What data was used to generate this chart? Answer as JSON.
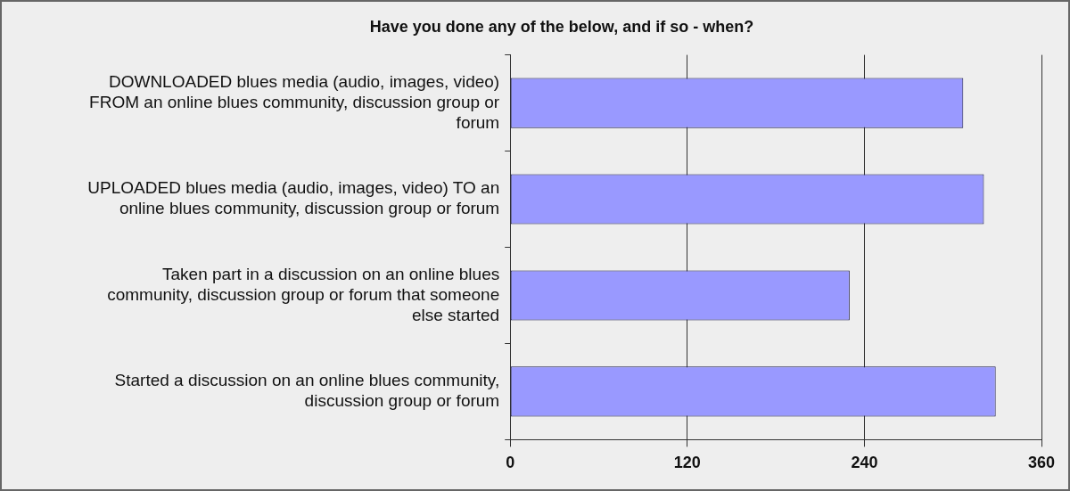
{
  "chart_data": {
    "type": "bar",
    "orientation": "horizontal",
    "title": "Have you done any of the below, and if so - when?",
    "categories": [
      "DOWNLOADED blues media (audio, images, video) FROM an online blues community, discussion group or forum",
      "UPLOADED blues media (audio, images, video) TO an online blues community, discussion group or forum",
      "Taken part in a discussion on an online blues community, discussion group or forum that someone else started",
      "Started a discussion on an online blues community, discussion group or forum"
    ],
    "values": [
      307,
      321,
      230,
      329
    ],
    "color": "#9999ff",
    "xlim": [
      0,
      360
    ],
    "xticks": [
      0,
      120,
      240,
      360
    ],
    "grid": "x",
    "legend": false
  }
}
